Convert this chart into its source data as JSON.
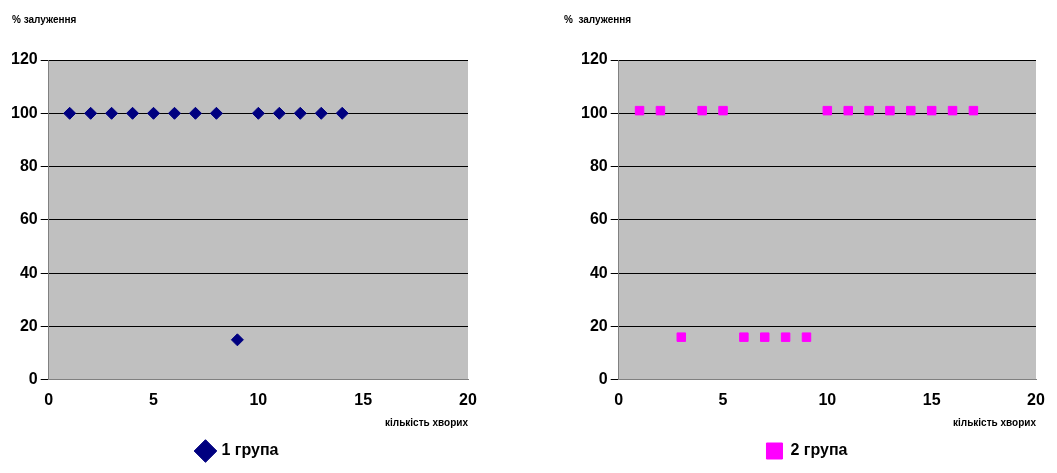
{
  "chart_data": [
    {
      "type": "scatter",
      "ylabel": "% залуження",
      "xlabel": "кількість хворих",
      "xlim": [
        0,
        20
      ],
      "xticks": [
        0,
        5,
        10,
        15,
        20
      ],
      "ylim": [
        0,
        120
      ],
      "yticks": [
        0,
        20,
        40,
        60,
        80,
        100,
        120
      ],
      "grid": "y",
      "legend": "bottom",
      "marker": "diamond",
      "series": [
        {
          "name": "1 група",
          "color": "#000080",
          "x": [
            1,
            2,
            3,
            4,
            5,
            6,
            7,
            8,
            9,
            10,
            11,
            12,
            13,
            14
          ],
          "values": [
            100,
            100,
            100,
            100,
            100,
            100,
            100,
            100,
            15,
            100,
            100,
            100,
            100,
            100
          ]
        }
      ]
    },
    {
      "type": "scatter",
      "ylabel": "%  залуження",
      "xlabel": "кількість хворих",
      "xlim": [
        0,
        20
      ],
      "xticks": [
        0,
        5,
        10,
        15,
        20
      ],
      "ylim": [
        0,
        120
      ],
      "yticks": [
        0,
        20,
        40,
        60,
        80,
        100,
        120
      ],
      "grid": "y",
      "legend": "bottom",
      "marker": "square",
      "series": [
        {
          "name": "2 група",
          "color": "#ff00ff",
          "x": [
            1,
            2,
            3,
            4,
            5,
            6,
            7,
            8,
            9,
            10,
            11,
            12,
            13,
            14,
            15,
            16,
            17
          ],
          "values": [
            101,
            101,
            16,
            101,
            101,
            16,
            16,
            16,
            16,
            101,
            101,
            101,
            101,
            101,
            101,
            101,
            101
          ]
        }
      ]
    }
  ]
}
